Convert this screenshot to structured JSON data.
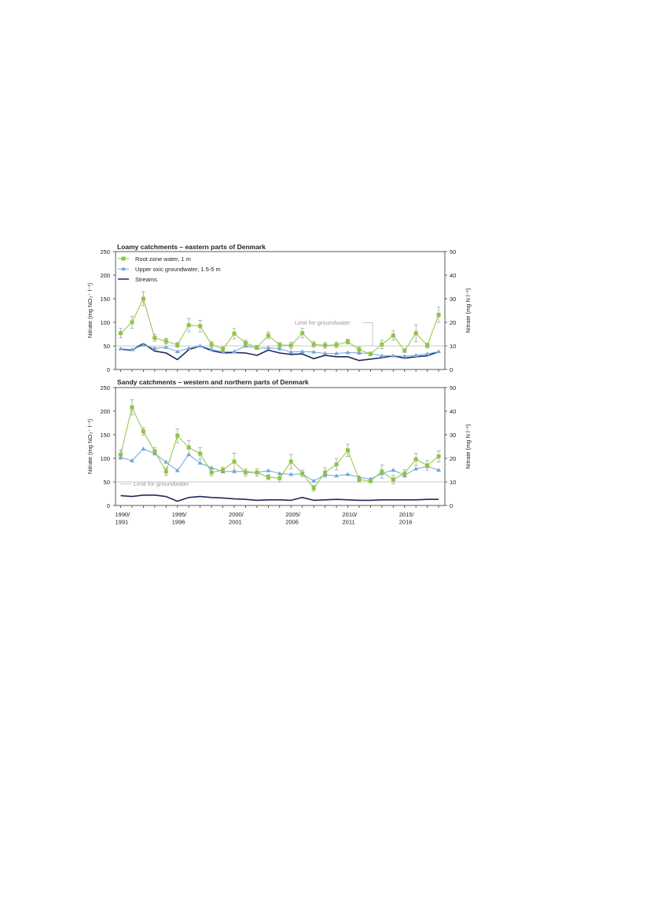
{
  "chart_data": [
    {
      "type": "line",
      "title": "Loamy catchments – eastern parts of Denmark",
      "ylabel_left": "Nitrate (mg NO₃⁻ l⁻¹)",
      "ylabel_right": "Nitrate (mg N l⁻¹)",
      "ylim_left": [
        0,
        250
      ],
      "ylim_right": [
        0,
        50
      ],
      "yticks_left": [
        "0",
        "50",
        "100",
        "150",
        "200",
        "250"
      ],
      "yticks_right": [
        "0",
        "10",
        "20",
        "30",
        "40",
        "50"
      ],
      "legend_position": "top-left",
      "annotation": {
        "text": "Limit for groundwater",
        "y": 50
      },
      "x": [
        1990,
        1991,
        1992,
        1993,
        1994,
        1995,
        1996,
        1997,
        1998,
        1999,
        2000,
        2001,
        2002,
        2003,
        2004,
        2005,
        2006,
        2007,
        2008,
        2009,
        2010,
        2011,
        2012,
        2013,
        2014,
        2015,
        2016,
        2017,
        2018
      ],
      "series": [
        {
          "name": "Root zone water, 1 m",
          "color": "#8dc63f",
          "marker": "square",
          "values": [
            77,
            100,
            150,
            67,
            60,
            52,
            94,
            92,
            53,
            43,
            76,
            56,
            47,
            72,
            52,
            51,
            77,
            53,
            51,
            52,
            59,
            42,
            33,
            53,
            72,
            40,
            77,
            51,
            116
          ],
          "errors": [
            10,
            13,
            15,
            7,
            6,
            5,
            14,
            12,
            6,
            5,
            11,
            6,
            4,
            7,
            5,
            7,
            10,
            6,
            6,
            6,
            5,
            6,
            4,
            9,
            10,
            4,
            18,
            5,
            16
          ]
        },
        {
          "name": "Upper oxic groundwater, 1.5-5 m",
          "color": "#6fa8dc",
          "marker": "triangle",
          "values": [
            44,
            42,
            52,
            45,
            47,
            38,
            45,
            50,
            43,
            37,
            38,
            50,
            45,
            46,
            44,
            37,
            38,
            37,
            34,
            34,
            36,
            35,
            34,
            29,
            29,
            28,
            30,
            33,
            38
          ]
        },
        {
          "name": "Streams",
          "color": "#1f2a5c",
          "marker": "none",
          "values": [
            43,
            41,
            55,
            39,
            35,
            21,
            42,
            50,
            40,
            35,
            36,
            35,
            30,
            41,
            35,
            32,
            33,
            23,
            30,
            27,
            27,
            19,
            22,
            25,
            29,
            24,
            27,
            29,
            38
          ]
        }
      ]
    },
    {
      "type": "line",
      "title": "Sandy catchments – western and northern parts of Denmark",
      "ylabel_left": "Nitrate (mg NO₃⁻ l⁻¹)",
      "ylabel_right": "Nitrate (mg N l⁻¹)",
      "ylim_left": [
        0,
        250
      ],
      "ylim_right": [
        0,
        50
      ],
      "yticks_left": [
        "0",
        "50",
        "100",
        "150",
        "200",
        "250"
      ],
      "yticks_right": [
        "0",
        "10",
        "20",
        "30",
        "40",
        "50"
      ],
      "annotation": {
        "text": "Limit for groundwater",
        "y": 50
      },
      "xtick_labels": [
        {
          "x": 1990,
          "lines": [
            "1990/",
            "1991"
          ]
        },
        {
          "x": 1995,
          "lines": [
            "1995/",
            "1996"
          ]
        },
        {
          "x": 2000,
          "lines": [
            "2000/",
            "2001"
          ]
        },
        {
          "x": 2005,
          "lines": [
            "2005/",
            "2006"
          ]
        },
        {
          "x": 2010,
          "lines": [
            "2010/",
            "2011"
          ]
        },
        {
          "x": 2015,
          "lines": [
            "2015/",
            "2016"
          ]
        }
      ],
      "x": [
        1990,
        1991,
        1992,
        1993,
        1994,
        1995,
        1996,
        1997,
        1998,
        1999,
        2000,
        2001,
        2002,
        2003,
        2004,
        2005,
        2006,
        2007,
        2008,
        2009,
        2010,
        2011,
        2012,
        2013,
        2014,
        2015,
        2016,
        2017,
        2018
      ],
      "series": [
        {
          "name": "Root zone water, 1 m",
          "color": "#8dc63f",
          "marker": "square",
          "values": [
            108,
            208,
            157,
            115,
            72,
            148,
            123,
            110,
            70,
            75,
            93,
            70,
            70,
            60,
            58,
            93,
            68,
            37,
            70,
            87,
            117,
            55,
            52,
            72,
            55,
            68,
            98,
            85,
            104
          ],
          "errors": [
            10,
            16,
            8,
            8,
            8,
            15,
            15,
            13,
            7,
            6,
            18,
            8,
            8,
            5,
            8,
            15,
            7,
            6,
            10,
            12,
            13,
            5,
            4,
            14,
            9,
            8,
            13,
            10,
            12
          ]
        },
        {
          "name": "Upper oxic groundwater, 1.5-5 m",
          "color": "#6fa8dc",
          "marker": "triangle",
          "values": [
            102,
            95,
            120,
            110,
            92,
            74,
            108,
            90,
            80,
            72,
            72,
            72,
            70,
            74,
            68,
            66,
            67,
            52,
            65,
            63,
            66,
            60,
            56,
            68,
            75,
            64,
            78,
            83,
            75
          ]
        },
        {
          "name": "Streams",
          "color": "#1f2a5c",
          "marker": "none",
          "values": [
            21,
            19,
            22,
            22,
            19,
            9,
            17,
            19,
            17,
            16,
            14,
            13,
            11,
            12,
            12,
            11,
            17,
            11,
            12,
            13,
            12,
            11,
            11,
            12,
            12,
            12,
            12,
            13,
            13
          ]
        }
      ]
    }
  ]
}
